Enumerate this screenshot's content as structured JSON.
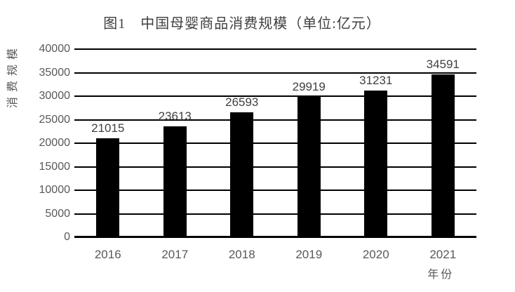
{
  "chart_data": {
    "type": "bar",
    "title": "图1　中国母婴商品消费规模（单位:亿元）",
    "ylabel": "消费规模",
    "xlabel": "年份",
    "categories": [
      "2016",
      "2017",
      "2018",
      "2019",
      "2020",
      "2021"
    ],
    "values": [
      21015,
      23613,
      26593,
      29919,
      31231,
      34591
    ],
    "data_labels": [
      "21015",
      "23613",
      "26593",
      "29919",
      "31231",
      "34591"
    ],
    "ylim": [
      0,
      40000
    ],
    "yticks": [
      0,
      5000,
      10000,
      15000,
      20000,
      25000,
      30000,
      35000,
      40000
    ],
    "ytick_labels": [
      "0",
      "5000",
      "10000",
      "15000",
      "20000",
      "25000",
      "30000",
      "35000",
      "40000"
    ],
    "grid": true,
    "legend": "none",
    "colors": {
      "bar": "#000000",
      "gridline": "#000000",
      "axis_line": "#000000",
      "tick_label": "#595959",
      "data_label": "#404040",
      "title": "#3f3f3f",
      "background": "#ffffff"
    }
  }
}
